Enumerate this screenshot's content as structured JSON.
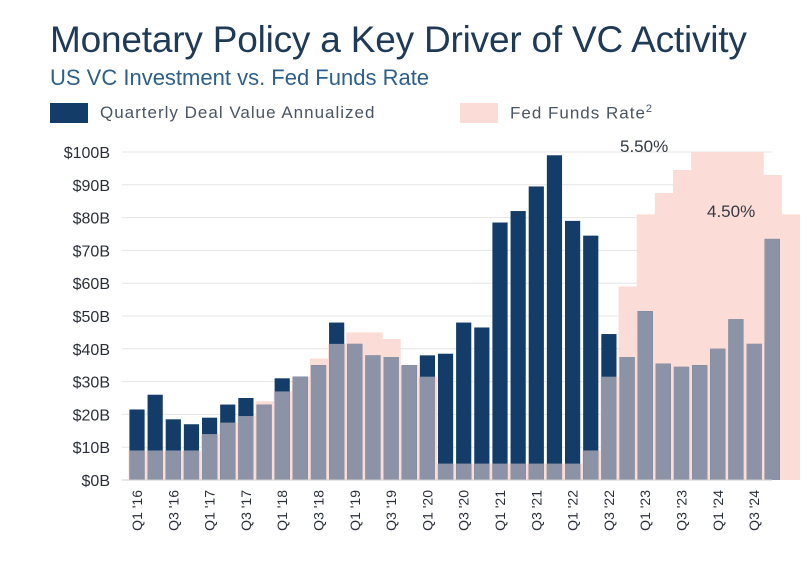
{
  "header": {
    "title": "Monetary Policy a Key Driver of VC Activity",
    "subtitle": "US VC Investment vs. Fed Funds Rate"
  },
  "legend": {
    "deal_value": "Quarterly Deal Value Annualized",
    "fed_rate": "Fed Funds Rate",
    "fed_rate_sup": "2"
  },
  "annotations": {
    "peak_rate": "5.50%",
    "current_rate": "4.50%"
  },
  "colors": {
    "deal_value": "#133d68",
    "fed_rate": "#fcdcd6",
    "overlap": "#8d93a6",
    "grid": "#e6e6e6"
  },
  "chart_data": {
    "type": "bar",
    "ylim": [
      0,
      100
    ],
    "y_ticks": [
      "$0B",
      "$10B",
      "$20B",
      "$30B",
      "$40B",
      "$50B",
      "$60B",
      "$70B",
      "$80B",
      "$90B",
      "$100B"
    ],
    "x_tick_labels": [
      "Q1 '16",
      "Q3 '16",
      "Q1 '17",
      "Q3 '17",
      "Q1 '18",
      "Q3 '18",
      "Q1 '19",
      "Q3 '19",
      "Q1 '20",
      "Q3 '20",
      "Q1 '21",
      "Q3 '21",
      "Q1 '22",
      "Q3 '22",
      "Q1 '23",
      "Q3 '23",
      "Q1 '24",
      "Q3 '24"
    ],
    "grid": true,
    "legend_position": "top-left",
    "series": [
      {
        "name": "Quarterly Deal Value Annualized",
        "values": [
          21.5,
          26,
          18.5,
          17,
          19,
          23,
          25,
          23,
          31,
          31.5,
          35,
          48,
          41.5,
          38,
          37.5,
          35,
          38,
          38.5,
          48,
          46.5,
          78.5,
          82,
          89.5,
          99,
          79,
          74.5,
          44.5,
          37.5,
          51.5,
          35.5,
          34.5,
          35,
          40,
          49,
          41.5,
          73.5
        ]
      },
      {
        "name": "Fed Funds Rate",
        "values": [
          9,
          9,
          9,
          9,
          14,
          17.5,
          19.5,
          24,
          27,
          31.5,
          37,
          41.5,
          45,
          45,
          43,
          35,
          31.5,
          5,
          5,
          5,
          5,
          5,
          5,
          5,
          5,
          9,
          31.5,
          59,
          81,
          87.5,
          94.5,
          100,
          100,
          100,
          100,
          93,
          81
        ]
      }
    ]
  }
}
